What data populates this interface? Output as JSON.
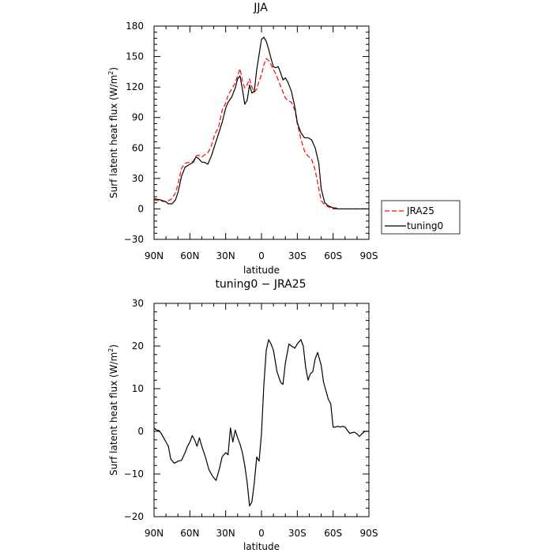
{
  "chart_data": [
    {
      "type": "line",
      "title": "JJA",
      "xlabel": "latitude",
      "ylabel": "Surf latent heat flux (W/m²)",
      "ylabel_parts": [
        "Surf latent heat flux (W/m",
        "2",
        ")"
      ],
      "xlim": [
        90,
        -90
      ],
      "ylim": [
        -30,
        180
      ],
      "x_ticks": [
        90,
        60,
        30,
        0,
        -30,
        -60,
        -90
      ],
      "x_tick_labels": [
        "90N",
        "60N",
        "30N",
        "0",
        "30S",
        "60S",
        "90S"
      ],
      "y_ticks": [
        -30,
        0,
        30,
        60,
        90,
        120,
        150,
        180
      ],
      "y_tick_labels": [
        "−30",
        "0",
        "30",
        "60",
        "90",
        "120",
        "150",
        "180"
      ],
      "x": [
        90,
        85,
        80,
        78,
        75,
        72,
        70,
        67,
        64,
        60,
        57,
        55,
        53,
        50,
        48,
        45,
        42,
        39,
        36,
        33,
        30,
        28,
        25,
        22,
        20,
        18,
        16,
        14,
        12,
        10,
        8,
        6,
        4,
        2,
        0,
        -2,
        -4,
        -6,
        -8,
        -10,
        -12,
        -14,
        -16,
        -18,
        -20,
        -22,
        -25,
        -28,
        -30,
        -33,
        -36,
        -39,
        -42,
        -45,
        -48,
        -50,
        -53,
        -56,
        -58,
        -60,
        -62,
        -64,
        -66,
        -68,
        -70,
        -72,
        -75,
        -80,
        -85,
        -90
      ],
      "series": [
        {
          "name": "JRA25",
          "color": "#ff0000",
          "dash": "dashed",
          "values": [
            9,
            8,
            7,
            8,
            10,
            16,
            24,
            40,
            45,
            46,
            47,
            52,
            53,
            51,
            53,
            55,
            62,
            74,
            80,
            97,
            104,
            112,
            118,
            124,
            131,
            138,
            126,
            119,
            122,
            128,
            120,
            115,
            118,
            126,
            132,
            142,
            148,
            146,
            142,
            137,
            133,
            127,
            121,
            115,
            109,
            107,
            105,
            97,
            84,
            69,
            57,
            52,
            49,
            38,
            20,
            8,
            4,
            2,
            1,
            0,
            0,
            0,
            0,
            0,
            0,
            0,
            0,
            0,
            0,
            0
          ]
        },
        {
          "name": "tuning0",
          "color": "#000000",
          "dash": "solid",
          "values": [
            10,
            9,
            7,
            5,
            5,
            9,
            16,
            32,
            41,
            44,
            46,
            51,
            50,
            46,
            46,
            44,
            52,
            63,
            74,
            85,
            99,
            105,
            110,
            119,
            128,
            131,
            118,
            103,
            107,
            122,
            114,
            116,
            137,
            152,
            167,
            169,
            165,
            157,
            148,
            140,
            139,
            140,
            134,
            127,
            129,
            125,
            116,
            100,
            85,
            75,
            70,
            70,
            68,
            60,
            45,
            20,
            6,
            3,
            2,
            1,
            1,
            0,
            0,
            0,
            0,
            0,
            0,
            0,
            0,
            0
          ]
        }
      ],
      "legend": [
        {
          "name": "JRA25",
          "color": "#ff0000",
          "dash": "dashed"
        },
        {
          "name": "tuning0",
          "color": "#000000",
          "dash": "solid"
        }
      ],
      "legend_position": "right",
      "grid": false
    },
    {
      "type": "line",
      "title": "tuning0 − JRA25",
      "xlabel": "latitude",
      "ylabel": "Surf latent heat flux (W/m²)",
      "ylabel_parts": [
        "Surf latent heat flux (W/m",
        "2",
        ")"
      ],
      "xlim": [
        90,
        -90
      ],
      "ylim": [
        -20,
        30
      ],
      "x_ticks": [
        90,
        60,
        30,
        0,
        -30,
        -60,
        -90
      ],
      "x_tick_labels": [
        "90N",
        "60N",
        "30N",
        "0",
        "30S",
        "60S",
        "90S"
      ],
      "y_ticks": [
        -20,
        -10,
        0,
        10,
        20,
        30
      ],
      "y_tick_labels": [
        "−20",
        "−10",
        "0",
        "10",
        "20",
        "30"
      ],
      "x": [
        90,
        88,
        86,
        84,
        82,
        80,
        78,
        76,
        73,
        70,
        67,
        64,
        62,
        60,
        58,
        56,
        54,
        52,
        50,
        47,
        44,
        41,
        38,
        35,
        33,
        30,
        28,
        26,
        24,
        22,
        20,
        18,
        16,
        14,
        12,
        10,
        8,
        6,
        4,
        2,
        0,
        -2,
        -4,
        -6,
        -8,
        -10,
        -13,
        -16,
        -18,
        -20,
        -23,
        -25,
        -28,
        -30,
        -33,
        -35,
        -37,
        -39,
        -41,
        -43,
        -45,
        -47,
        -50,
        -52,
        -54,
        -56,
        -58,
        -60,
        -62,
        -64,
        -66,
        -68,
        -70,
        -72,
        -74,
        -76,
        -78,
        -80,
        -82,
        -84,
        -86,
        -88,
        -90
      ],
      "series": [
        {
          "name": "",
          "color": "#000000",
          "dash": "solid",
          "values": [
            0.8,
            0.3,
            0.2,
            -0.5,
            -1.5,
            -2.5,
            -3.5,
            -6.5,
            -7.5,
            -7.0,
            -6.8,
            -5.0,
            -3.5,
            -2.5,
            -1.0,
            -2.0,
            -3.5,
            -1.5,
            -3.5,
            -6.0,
            -9.0,
            -10.5,
            -11.5,
            -8.5,
            -6.0,
            -5.0,
            -5.5,
            0.8,
            -2.5,
            0.3,
            -1.5,
            -3.0,
            -5.0,
            -8.0,
            -12.0,
            -17.5,
            -16.5,
            -12.0,
            -6.0,
            -7.0,
            -0.5,
            11.0,
            19.0,
            21.5,
            20.5,
            19.0,
            14.0,
            11.5,
            11.0,
            16.0,
            20.5,
            20.0,
            19.5,
            20.5,
            21.5,
            20.0,
            15.0,
            12.0,
            13.5,
            14.0,
            17.0,
            18.5,
            15.5,
            11.5,
            9.5,
            7.5,
            6.5,
            1.0,
            1.0,
            1.2,
            1.0,
            1.2,
            1.0,
            0.2,
            -0.5,
            -0.3,
            -0.2,
            -0.6,
            -1.2,
            -0.6,
            -0.1,
            0.0,
            0.0
          ]
        }
      ],
      "grid": false
    }
  ]
}
